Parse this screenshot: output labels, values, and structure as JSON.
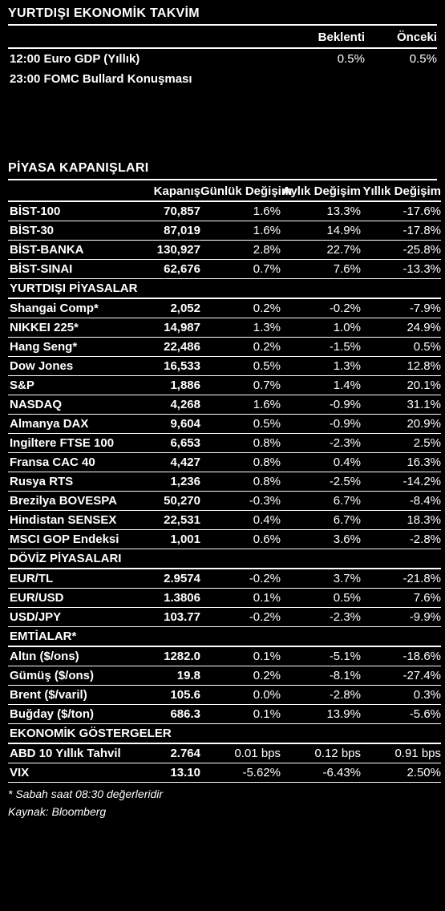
{
  "calendar": {
    "title": "YURTDIŞI EKONOMİK TAKVİM",
    "headers": {
      "expect": "Beklenti",
      "prev": "Önceki"
    },
    "rows": [
      {
        "label": "12:00 Euro GDP (Yıllık)",
        "expect": "0.5%",
        "prev": "0.5%"
      },
      {
        "label": "23:00 FOMC Bullard Konuşması",
        "expect": "",
        "prev": ""
      }
    ]
  },
  "markets": {
    "title": "PİYASA KAPANIŞLARI",
    "headers": {
      "close": "Kapanış",
      "daily": "Günlük Değişim",
      "monthly": "Aylık Değişim",
      "yearly": "Yıllık Değişim"
    },
    "groups": [
      {
        "subheader": null,
        "rows": [
          {
            "name": "BİST-100",
            "close": "70,857",
            "d": "1.6%",
            "m": "13.3%",
            "y": "-17.6%"
          },
          {
            "name": "BİST-30",
            "close": "87,019",
            "d": "1.6%",
            "m": "14.9%",
            "y": "-17.8%"
          },
          {
            "name": "BİST-BANKA",
            "close": "130,927",
            "d": "2.8%",
            "m": "22.7%",
            "y": "-25.8%"
          },
          {
            "name": "BİST-SINAI",
            "close": "62,676",
            "d": "0.7%",
            "m": "7.6%",
            "y": "-13.3%"
          }
        ]
      },
      {
        "subheader": "YURTDIŞI PİYASALAR",
        "rows": [
          {
            "name": "Shangai Comp*",
            "close": "2,052",
            "d": "0.2%",
            "m": "-0.2%",
            "y": "-7.9%"
          },
          {
            "name": "NIKKEI 225*",
            "close": "14,987",
            "d": "1.3%",
            "m": "1.0%",
            "y": "24.9%"
          },
          {
            "name": "Hang Seng*",
            "close": "22,486",
            "d": "0.2%",
            "m": "-1.5%",
            "y": "0.5%"
          },
          {
            "name": "Dow Jones",
            "close": "16,533",
            "d": "0.5%",
            "m": "1.3%",
            "y": "12.8%"
          },
          {
            "name": "S&P",
            "close": "1,886",
            "d": "0.7%",
            "m": "1.4%",
            "y": "20.1%"
          },
          {
            "name": "NASDAQ",
            "close": "4,268",
            "d": "1.6%",
            "m": "-0.9%",
            "y": "31.1%"
          },
          {
            "name": "Almanya  DAX",
            "close": "9,604",
            "d": "0.5%",
            "m": "-0.9%",
            "y": "20.9%"
          },
          {
            "name": "Ingiltere FTSE 100",
            "close": "6,653",
            "d": "0.8%",
            "m": "-2.3%",
            "y": "2.5%"
          },
          {
            "name": "Fransa CAC 40",
            "close": "4,427",
            "d": "0.8%",
            "m": "0.4%",
            "y": "16.3%"
          },
          {
            "name": "Rusya RTS",
            "close": "1,236",
            "d": "0.8%",
            "m": "-2.5%",
            "y": "-14.2%"
          },
          {
            "name": "Brezilya BOVESPA",
            "close": "50,270",
            "d": "-0.3%",
            "m": "6.7%",
            "y": "-8.4%"
          },
          {
            "name": "Hindistan SENSEX",
            "close": "22,531",
            "d": "0.4%",
            "m": "6.7%",
            "y": "18.3%"
          },
          {
            "name": "MSCI GOP Endeksi",
            "close": "1,001",
            "d": "0.6%",
            "m": "3.6%",
            "y": "-2.8%"
          }
        ]
      },
      {
        "subheader": "DÖVİZ PİYASALARI",
        "rows": [
          {
            "name": "EUR/TL",
            "close": "2.9574",
            "d": "-0.2%",
            "m": "3.7%",
            "y": "-21.8%"
          },
          {
            "name": "EUR/USD",
            "close": "1.3806",
            "d": "0.1%",
            "m": "0.5%",
            "y": "7.6%"
          },
          {
            "name": "USD/JPY",
            "close": "103.77",
            "d": "-0.2%",
            "m": "-2.3%",
            "y": "-9.9%"
          }
        ]
      },
      {
        "subheader": "EMTİALAR*",
        "rows": [
          {
            "name": "Altın ($/ons)",
            "close": "1282.0",
            "d": "0.1%",
            "m": "-5.1%",
            "y": "-18.6%"
          },
          {
            "name": "Gümüş ($/ons)",
            "close": "19.8",
            "d": "0.2%",
            "m": "-8.1%",
            "y": "-27.4%"
          },
          {
            "name": "Brent ($/varil)",
            "close": "105.6",
            "d": "0.0%",
            "m": "-2.8%",
            "y": "0.3%"
          },
          {
            "name": "Buğday ($/ton)",
            "close": "686.3",
            "d": "0.1%",
            "m": "13.9%",
            "y": "-5.6%"
          }
        ]
      },
      {
        "subheader": "EKONOMİK GÖSTERGELER",
        "rows": [
          {
            "name": "ABD 10 Yıllık Tahvil",
            "close": "2.764",
            "d": "0.01 bps",
            "m": "0.12 bps",
            "y": "0.91 bps"
          },
          {
            "name": "VIX",
            "close": "13.10",
            "d": "-5.62%",
            "m": "-6.43%",
            "y": "2.50%"
          }
        ]
      }
    ]
  },
  "footnote": "* Sabah saat 08:30 değerleridir",
  "source": "Kaynak: Bloomberg"
}
